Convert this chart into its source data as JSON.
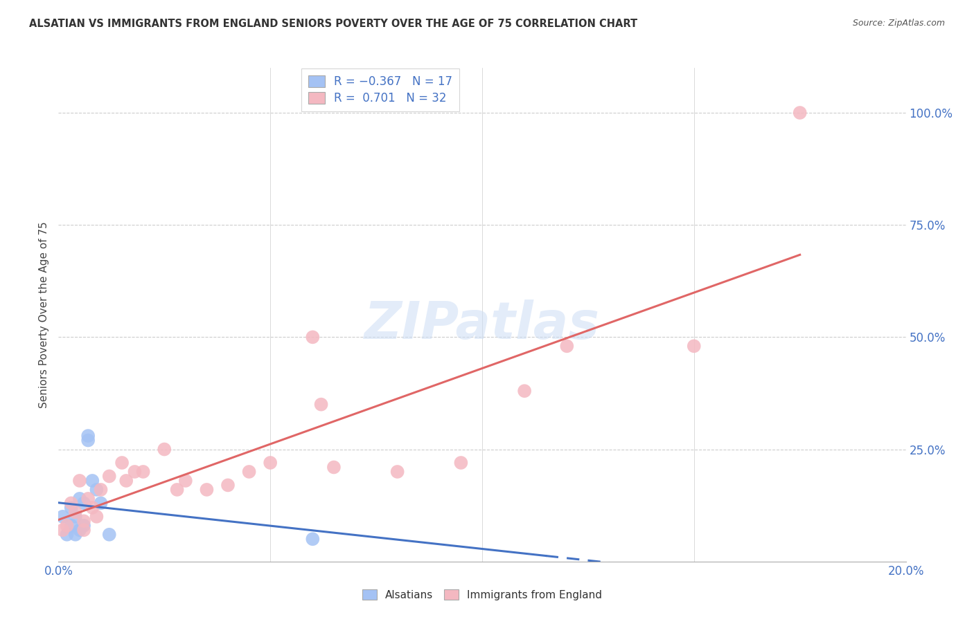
{
  "title": "ALSATIAN VS IMMIGRANTS FROM ENGLAND SENIORS POVERTY OVER THE AGE OF 75 CORRELATION CHART",
  "source": "Source: ZipAtlas.com",
  "ylabel": "Seniors Poverty Over the Age of 75",
  "xlim": [
    0.0,
    0.2
  ],
  "ylim": [
    0.0,
    1.1
  ],
  "x_ticks": [
    0.0,
    0.05,
    0.1,
    0.15,
    0.2
  ],
  "x_tick_labels": [
    "0.0%",
    "",
    "",
    "",
    "20.0%"
  ],
  "y_ticks": [
    0.0,
    0.25,
    0.5,
    0.75,
    1.0
  ],
  "y_tick_labels_right": [
    "",
    "25.0%",
    "50.0%",
    "75.0%",
    "100.0%"
  ],
  "blue_color": "#a4c2f4",
  "pink_color": "#f4b8c1",
  "blue_line_color": "#4472c4",
  "pink_line_color": "#e06666",
  "watermark": "ZIPatlas",
  "alsatians_x": [
    0.001,
    0.002,
    0.003,
    0.003,
    0.004,
    0.004,
    0.005,
    0.005,
    0.006,
    0.006,
    0.007,
    0.007,
    0.008,
    0.009,
    0.01,
    0.012,
    0.06
  ],
  "alsatians_y": [
    0.1,
    0.06,
    0.12,
    0.08,
    0.1,
    0.06,
    0.14,
    0.07,
    0.08,
    0.13,
    0.27,
    0.28,
    0.18,
    0.16,
    0.13,
    0.06,
    0.05
  ],
  "england_x": [
    0.001,
    0.002,
    0.003,
    0.004,
    0.005,
    0.006,
    0.006,
    0.007,
    0.008,
    0.009,
    0.01,
    0.012,
    0.015,
    0.016,
    0.018,
    0.02,
    0.025,
    0.028,
    0.03,
    0.035,
    0.04,
    0.045,
    0.05,
    0.06,
    0.062,
    0.065,
    0.08,
    0.095,
    0.11,
    0.12,
    0.15,
    0.175
  ],
  "england_y": [
    0.07,
    0.08,
    0.13,
    0.11,
    0.18,
    0.09,
    0.07,
    0.14,
    0.12,
    0.1,
    0.16,
    0.19,
    0.22,
    0.18,
    0.2,
    0.2,
    0.25,
    0.16,
    0.18,
    0.16,
    0.17,
    0.2,
    0.22,
    0.5,
    0.35,
    0.21,
    0.2,
    0.22,
    0.38,
    0.48,
    0.48,
    1.0
  ],
  "background_color": "#ffffff",
  "grid_color": "#cccccc",
  "blue_line_x_solid_end": 0.115,
  "blue_line_x_dashed_end": 0.2,
  "pink_line_x_start": 0.0,
  "pink_line_x_end": 0.175
}
